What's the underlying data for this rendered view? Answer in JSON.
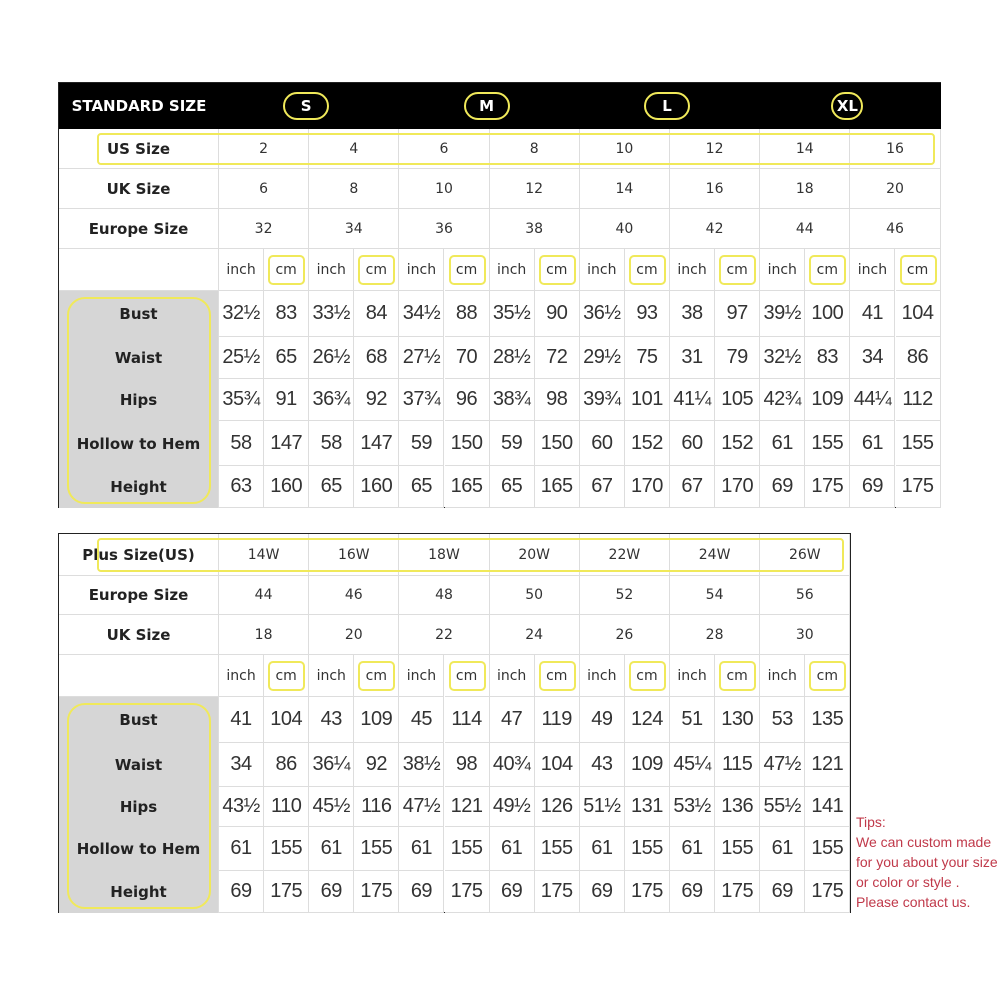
{
  "standard": {
    "title": "STANDARD SIZE",
    "groups": [
      "S",
      "M",
      "L",
      "XL"
    ],
    "rows": [
      {
        "label": "US Size",
        "values": [
          "2",
          "4",
          "6",
          "8",
          "10",
          "12",
          "14",
          "16"
        ]
      },
      {
        "label": "UK Size",
        "values": [
          "6",
          "8",
          "10",
          "12",
          "14",
          "16",
          "18",
          "20"
        ]
      },
      {
        "label": "Europe Size",
        "values": [
          "32",
          "34",
          "36",
          "38",
          "40",
          "42",
          "44",
          "46"
        ]
      }
    ],
    "units": [
      "inch",
      "cm"
    ],
    "measures": [
      {
        "label": "Bust",
        "values": [
          "32½",
          "83",
          "33½",
          "84",
          "34½",
          "88",
          "35½",
          "90",
          "36½",
          "93",
          "38",
          "97",
          "39½",
          "100",
          "41",
          "104"
        ]
      },
      {
        "label": "Waist",
        "values": [
          "25½",
          "65",
          "26½",
          "68",
          "27½",
          "70",
          "28½",
          "72",
          "29½",
          "75",
          "31",
          "79",
          "32½",
          "83",
          "34",
          "86"
        ]
      },
      {
        "label": "Hips",
        "values": [
          "35¾",
          "91",
          "36¾",
          "92",
          "37¾",
          "96",
          "38¾",
          "98",
          "39¾",
          "101",
          "41¼",
          "105",
          "42¾",
          "109",
          "44¼",
          "112"
        ]
      },
      {
        "label": "Hollow to Hem",
        "values": [
          "58",
          "147",
          "58",
          "147",
          "59",
          "150",
          "59",
          "150",
          "60",
          "152",
          "60",
          "152",
          "61",
          "155",
          "61",
          "155"
        ]
      },
      {
        "label": "Height",
        "values": [
          "63",
          "160",
          "65",
          "160",
          "65",
          "165",
          "65",
          "165",
          "67",
          "170",
          "67",
          "170",
          "69",
          "175",
          "69",
          "175"
        ]
      }
    ]
  },
  "plus": {
    "rows": [
      {
        "label": "Plus Size(US)",
        "values": [
          "14W",
          "16W",
          "18W",
          "20W",
          "22W",
          "24W",
          "26W"
        ]
      },
      {
        "label": "Europe Size",
        "values": [
          "44",
          "46",
          "48",
          "50",
          "52",
          "54",
          "56"
        ]
      },
      {
        "label": "UK Size",
        "values": [
          "18",
          "20",
          "22",
          "24",
          "26",
          "28",
          "30"
        ]
      }
    ],
    "units": [
      "inch",
      "cm"
    ],
    "measures": [
      {
        "label": "Bust",
        "values": [
          "41",
          "104",
          "43",
          "109",
          "45",
          "114",
          "47",
          "119",
          "49",
          "124",
          "51",
          "130",
          "53",
          "135"
        ]
      },
      {
        "label": "Waist",
        "values": [
          "34",
          "86",
          "36¼",
          "92",
          "38½",
          "98",
          "40¾",
          "104",
          "43",
          "109",
          "45¼",
          "115",
          "47½",
          "121"
        ]
      },
      {
        "label": "Hips",
        "values": [
          "43½",
          "110",
          "45½",
          "116",
          "47½",
          "121",
          "49½",
          "126",
          "51½",
          "131",
          "53½",
          "136",
          "55½",
          "141"
        ]
      },
      {
        "label": "Hollow to Hem",
        "values": [
          "61",
          "155",
          "61",
          "155",
          "61",
          "155",
          "61",
          "155",
          "61",
          "155",
          "61",
          "155",
          "61",
          "155"
        ]
      },
      {
        "label": "Height",
        "values": [
          "69",
          "175",
          "69",
          "175",
          "69",
          "175",
          "69",
          "175",
          "69",
          "175",
          "69",
          "175",
          "69",
          "175"
        ]
      }
    ]
  },
  "tips": {
    "title": "Tips:",
    "lines": [
      "We can custom made",
      "for you about your size",
      "or color or style .",
      "Please contact us."
    ]
  },
  "colors": {
    "highlight": "#f0e95a",
    "header": "#000000",
    "label_bg": "#d6d6d6",
    "tips": "#c0394a"
  }
}
